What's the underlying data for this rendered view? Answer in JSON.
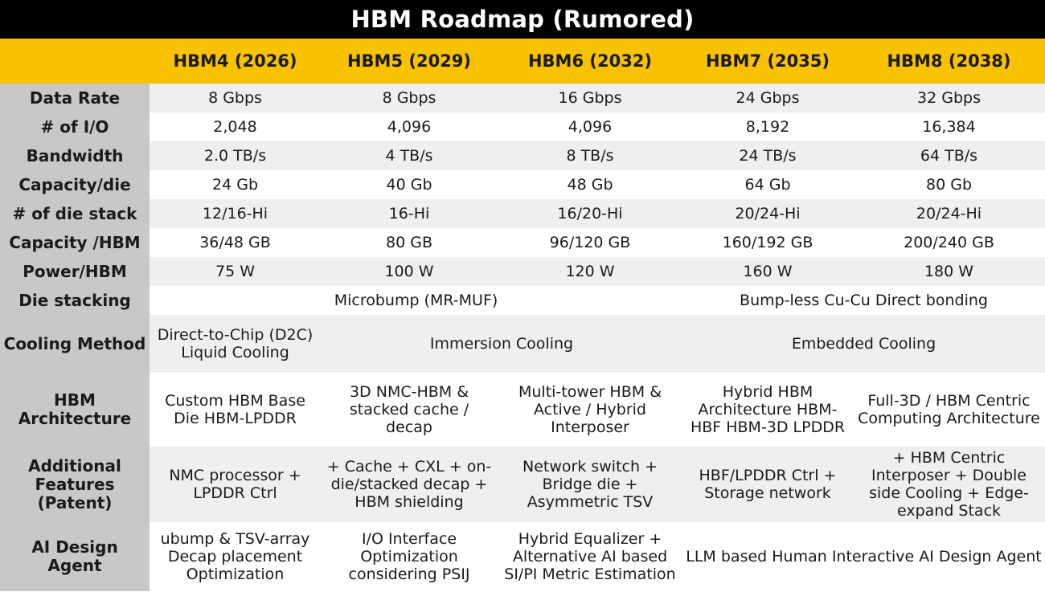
{
  "title": "HBM Roadmap (Rumored)",
  "columns": [
    "HBM4 (2026)",
    "HBM5 (2029)",
    "HBM6 (2032)",
    "HBM7 (2035)",
    "HBM8 (2038)"
  ],
  "rows": {
    "data_rate": {
      "label": "Data Rate",
      "values": [
        "8 Gbps",
        "8 Gbps",
        "16 Gbps",
        "24 Gbps",
        "32 Gbps"
      ]
    },
    "io": {
      "label": "# of I/O",
      "values": [
        "2,048",
        "4,096",
        "4,096",
        "8,192",
        "16,384"
      ]
    },
    "bandwidth": {
      "label": "Bandwidth",
      "values": [
        "2.0 TB/s",
        "4 TB/s",
        "8 TB/s",
        "24 TB/s",
        "64 TB/s"
      ]
    },
    "capacity_die": {
      "label": "Capacity/die",
      "values": [
        "24 Gb",
        "40 Gb",
        "48 Gb",
        "64 Gb",
        "80 Gb"
      ]
    },
    "die_stack": {
      "label": "# of die stack",
      "values": [
        "12/16-Hi",
        "16-Hi",
        "16/20-Hi",
        "20/24-Hi",
        "20/24-Hi"
      ]
    },
    "capacity_hbm": {
      "label": "Capacity /HBM",
      "values": [
        "36/48 GB",
        "80 GB",
        "96/120 GB",
        "160/192 GB",
        "200/240 GB"
      ]
    },
    "power": {
      "label": "Power/HBM",
      "values": [
        "75 W",
        "100 W",
        "120 W",
        "160 W",
        "180 W"
      ]
    },
    "die_stacking": {
      "label": "Die stacking",
      "microbump": "Microbump (MR-MUF)",
      "bumpless": "Bump-less Cu-Cu Direct bonding"
    },
    "cooling": {
      "label": "Cooling Method",
      "d2c": "Direct-to-Chip (D2C) Liquid Cooling",
      "immersion": "Immersion Cooling",
      "embedded": "Embedded Cooling"
    },
    "architecture": {
      "label": "HBM Architecture",
      "values": [
        "Custom HBM Base Die HBM-LPDDR",
        "3D NMC-HBM & stacked cache / decap",
        "Multi-tower HBM & Active / Hybrid Interposer",
        "Hybrid HBM Architecture HBM-HBF HBM-3D LPDDR",
        "Full-3D / HBM Centric Computing Architecture"
      ]
    },
    "features": {
      "label": "Additional Features (Patent)",
      "values": [
        "NMC processor + LPDDR Ctrl",
        "+ Cache + CXL + on-die/stacked decap + HBM shielding",
        "Network switch + Bridge die + Asymmetric TSV",
        "HBF/LPDDR Ctrl + Storage network",
        "+ HBM Centric Interposer + Double side Cooling + Edge-expand Stack"
      ]
    },
    "ai_agent": {
      "label": "AI Design Agent",
      "values": [
        "ubump & TSV-array Decap placement Optimization",
        "I/O Interface Optimization considering PSIJ",
        "Hybrid Equalizer + Alternative AI based SI/PI Metric Estimation"
      ],
      "llm": "LLM based Human Interactive AI Design Agent"
    }
  },
  "colors": {
    "title_bg": "#000000",
    "header_bg": "#f8c200",
    "label_bg": "#c8c8c8",
    "row_alt": "#efefef"
  }
}
